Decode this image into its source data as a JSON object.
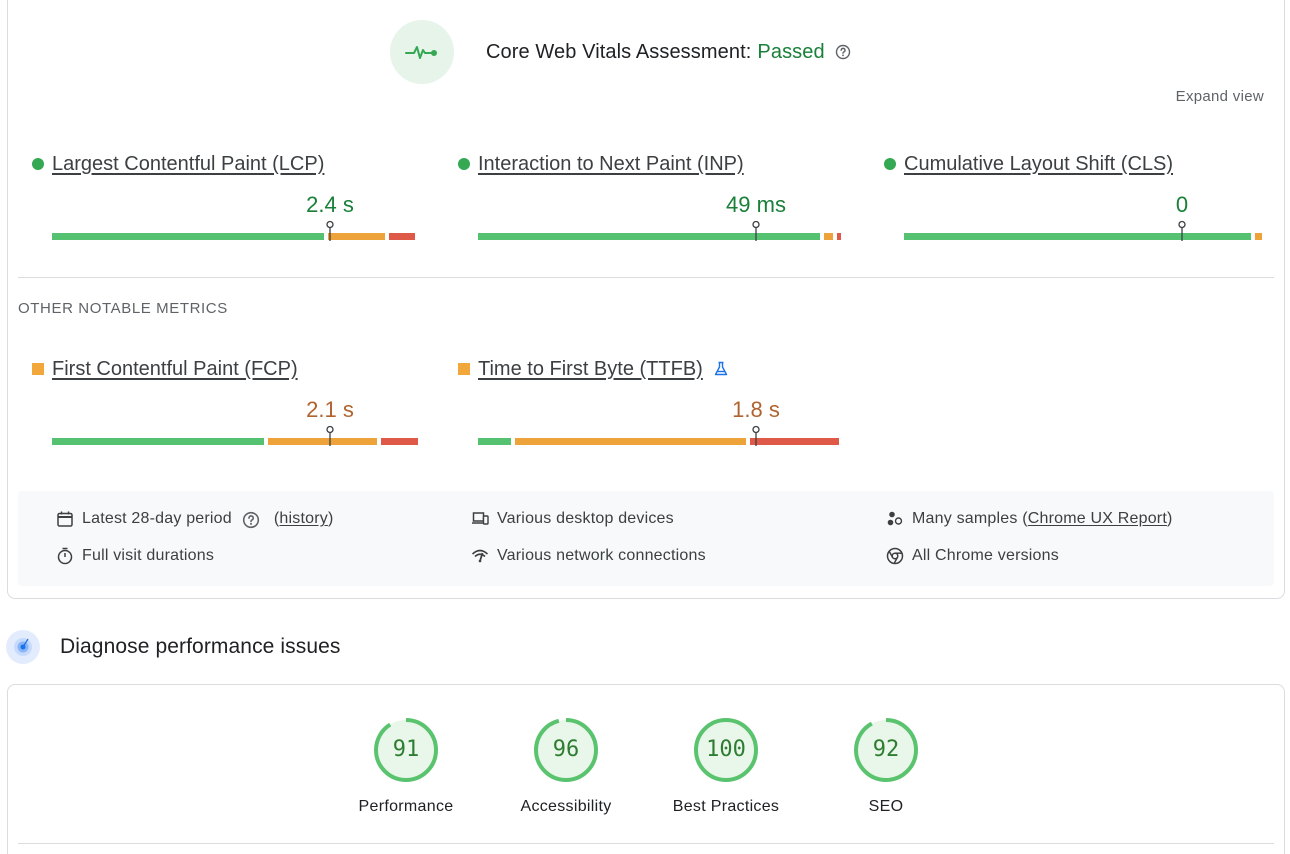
{
  "assessment": {
    "title": "Core Web Vitals Assessment:",
    "status": "Passed",
    "status_color": "#188038",
    "expand_label": "Expand view"
  },
  "core_metrics": [
    {
      "name": "Largest Contentful Paint (LCP)",
      "value": "2.4 s",
      "rating": "good",
      "marker": 0.75,
      "segments": [
        0.745,
        0.165,
        0.07
      ]
    },
    {
      "name": "Interaction to Next Paint (INP)",
      "value": "49 ms",
      "rating": "good",
      "marker": 0.75,
      "segments": [
        0.935,
        0.035,
        0.01
      ]
    },
    {
      "name": "Cumulative Layout Shift (CLS)",
      "value": "0",
      "rating": "good",
      "marker": 0.75,
      "segments": [
        0.955,
        0.03,
        0.0
      ]
    }
  ],
  "other_section_label": "OTHER NOTABLE METRICS",
  "other_metrics": [
    {
      "name": "First Contentful Paint (FCP)",
      "value": "2.1 s",
      "rating": "ni",
      "marker": 0.75,
      "segments": [
        0.585,
        0.305,
        0.1
      ],
      "experimental": false
    },
    {
      "name": "Time to First Byte (TTFB)",
      "value": "1.8 s",
      "rating": "ni",
      "marker": 0.75,
      "segments": [
        0.1,
        0.635,
        0.24
      ],
      "experimental": true
    }
  ],
  "info": {
    "period": "Latest 28-day period",
    "history_link": "history",
    "devices": "Various desktop devices",
    "samples_prefix": "Many samples (",
    "samples_link": "Chrome UX Report",
    "samples_suffix": ")",
    "durations": "Full visit durations",
    "network": "Various network connections",
    "versions": "All Chrome versions"
  },
  "diagnose": {
    "title": "Diagnose performance issues"
  },
  "scores": [
    {
      "label": "Performance",
      "score": "91",
      "fraction": 0.91
    },
    {
      "label": "Accessibility",
      "score": "96",
      "fraction": 0.96
    },
    {
      "label": "Best Practices",
      "score": "100",
      "fraction": 1.0
    },
    {
      "label": "SEO",
      "score": "92",
      "fraction": 0.92
    }
  ],
  "colors": {
    "good": "#55c271",
    "needs_improvement": "#eea23a",
    "poor": "#df5948",
    "gauge_fill": "#e9f6ea",
    "gauge_stroke": "#5ac36e"
  }
}
